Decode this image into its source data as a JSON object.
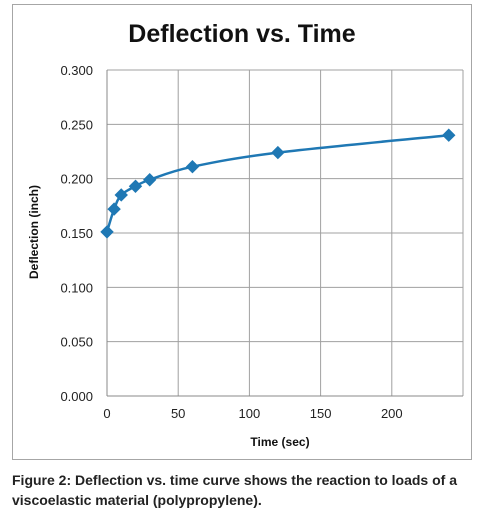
{
  "chart_data": {
    "type": "line",
    "title": "Deflection vs. Time",
    "xlabel": "Time (sec)",
    "ylabel": "Deflection (inch)",
    "xlim": [
      0,
      250
    ],
    "ylim": [
      0,
      0.3
    ],
    "x_ticks": [
      "0",
      "50",
      "100",
      "150",
      "200"
    ],
    "y_ticks": [
      "0.000",
      "0.050",
      "0.100",
      "0.150",
      "0.200",
      "0.250",
      "0.300"
    ],
    "grid": true,
    "legend": "none",
    "series": [
      {
        "color": "#1f78b4",
        "marker": "diamond",
        "points": [
          {
            "x": 0,
            "y": 0.151
          },
          {
            "x": 5,
            "y": 0.172
          },
          {
            "x": 10,
            "y": 0.185
          },
          {
            "x": 20,
            "y": 0.193
          },
          {
            "x": 30,
            "y": 0.199
          },
          {
            "x": 60,
            "y": 0.211
          },
          {
            "x": 120,
            "y": 0.224
          },
          {
            "x": 240,
            "y": 0.24
          }
        ]
      }
    ]
  },
  "caption": "Figure 2: Deflection vs. time curve shows the reaction to loads of a viscoelastic material (polypropylene)."
}
